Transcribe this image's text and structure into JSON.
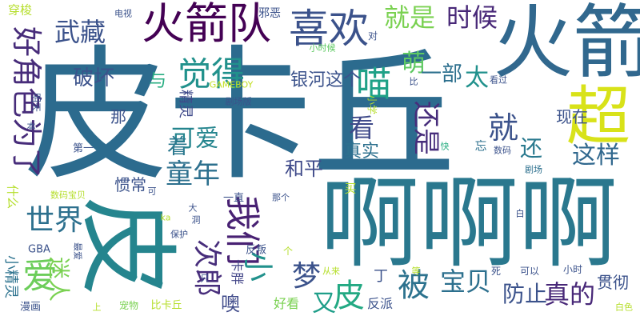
{
  "palette": {
    "background": "#ffffff",
    "purple": "#440154",
    "indigo": "#3b528b",
    "teal": "#21918c",
    "green": "#5ec962",
    "lime": "#b5de2b",
    "yellow": "#fde725"
  },
  "words": [
    {
      "text": "皮卡丘",
      "color": "#2c6b8e",
      "vertical": false
    },
    {
      "text": "火箭",
      "color": "#31688e",
      "vertical": false
    },
    {
      "text": "超",
      "color": "#d8e219",
      "vertical": false
    },
    {
      "text": "啊啊啊",
      "color": "#2a788e",
      "vertical": false
    },
    {
      "text": "皮",
      "color": "#25858e",
      "vertical": true
    },
    {
      "text": "火箭队",
      "color": "#440154",
      "vertical": false
    },
    {
      "text": "喜欢",
      "color": "#3b528b",
      "vertical": false
    },
    {
      "text": "就是",
      "color": "#7ad151",
      "vertical": false
    },
    {
      "text": "时候",
      "color": "#482878",
      "vertical": false
    },
    {
      "text": "武藏",
      "color": "#3b528b",
      "vertical": false
    },
    {
      "text": "觉得",
      "color": "#21918c",
      "vertical": false
    },
    {
      "text": "喵",
      "color": "#1fa187",
      "vertical": false
    },
    {
      "text": "萌",
      "color": "#5ec962",
      "vertical": false
    },
    {
      "text": "太",
      "color": "#21918c",
      "vertical": false
    },
    {
      "text": "好角色为了",
      "color": "#472c7a",
      "vertical": true
    },
    {
      "text": "一部",
      "color": "#2d708e",
      "vertical": false
    },
    {
      "text": "破坏",
      "color": "#3b528b",
      "vertical": false
    },
    {
      "text": "与",
      "color": "#27ad81",
      "vertical": false
    },
    {
      "text": "银河这个",
      "color": "#3b528b",
      "vertical": false
    },
    {
      "text": "还是",
      "color": "#472d7b",
      "vertical": true
    },
    {
      "text": "可爱",
      "color": "#25858e",
      "vertical": false
    },
    {
      "text": "看",
      "color": "#3e4989",
      "vertical": false
    },
    {
      "text": "就",
      "color": "#3b528b",
      "vertical": false
    },
    {
      "text": "还",
      "color": "#29798e",
      "vertical": false
    },
    {
      "text": "现在",
      "color": "#3b528b",
      "vertical": false
    },
    {
      "text": "这样",
      "color": "#31688e",
      "vertical": false
    },
    {
      "text": "着",
      "color": "#2a788e",
      "vertical": false
    },
    {
      "text": "真实",
      "color": "#2d708e",
      "vertical": false
    },
    {
      "text": "童年",
      "color": "#2d708e",
      "vertical": false
    },
    {
      "text": "世界",
      "color": "#2d708e",
      "vertical": false
    },
    {
      "text": "我们",
      "color": "#482173",
      "vertical": true
    },
    {
      "text": "爱",
      "color": "#6ccd5a",
      "vertical": false
    },
    {
      "text": "和平",
      "color": "#3e4989",
      "vertical": false
    },
    {
      "text": "惯常",
      "color": "#3b528b",
      "vertical": false
    },
    {
      "text": "小",
      "color": "#21918c",
      "vertical": true
    },
    {
      "text": "次郎",
      "color": "#472d7b",
      "vertical": true
    },
    {
      "text": "梦",
      "color": "#3b528b",
      "vertical": false
    },
    {
      "text": "被",
      "color": "#2c728e",
      "vertical": false
    },
    {
      "text": "皮",
      "color": "#23a983",
      "vertical": false
    },
    {
      "text": "宝贝",
      "color": "#2d708e",
      "vertical": false
    },
    {
      "text": "防止",
      "color": "#3b528b",
      "vertical": false
    },
    {
      "text": "真的",
      "color": "#482878",
      "vertical": false
    },
    {
      "text": "贯彻",
      "color": "#3b528b",
      "vertical": false
    },
    {
      "text": "迷人",
      "color": "#7ad151",
      "vertical": true
    },
    {
      "text": "又",
      "color": "#1f9e89",
      "vertical": false
    },
    {
      "text": "噢",
      "color": "#3e4989",
      "vertical": false
    },
    {
      "text": "丁",
      "color": "#3b528b",
      "vertical": false
    },
    {
      "text": "卡胖",
      "color": "#414487",
      "vertical": true
    },
    {
      "text": "反叛",
      "color": "#3b528b",
      "vertical": false
    },
    {
      "text": "好看",
      "color": "#7ad151",
      "vertical": false
    },
    {
      "text": "反派",
      "color": "#3b528b",
      "vertical": false
    },
    {
      "text": "小精灵",
      "color": "#2c728e",
      "vertical": true
    },
    {
      "text": "漫画",
      "color": "#3b528b",
      "vertical": false
    },
    {
      "text": "宠物",
      "color": "#7ad151",
      "vertical": false
    },
    {
      "text": "比卡丘",
      "color": "#b5de2b",
      "vertical": false
    },
    {
      "text": "白色",
      "color": "#b5de2b",
      "vertical": false
    },
    {
      "text": "穿梭",
      "color": "#b5de2b",
      "vertical": false
    },
    {
      "text": "电视",
      "color": "#3b528b",
      "vertical": false
    },
    {
      "text": "邪恶",
      "color": "#3b528b",
      "vertical": false
    },
    {
      "text": "对",
      "color": "#3b528b",
      "vertical": false
    },
    {
      "text": "小时候",
      "color": "#5ec962",
      "vertical": false
    },
    {
      "text": "GAMEBOY",
      "color": "#c2df23",
      "vertical": false
    },
    {
      "text": "剧场版",
      "color": "#3b528b",
      "vertical": false
    },
    {
      "text": "精灵",
      "color": "#3e4989",
      "vertical": true
    },
    {
      "text": "那",
      "color": "#3b528b",
      "vertical": false
    },
    {
      "text": "本",
      "color": "#3b528b",
      "vertical": false
    },
    {
      "text": "第一",
      "color": "#3b528b",
      "vertical": false
    },
    {
      "text": "什么",
      "color": "#b5de2b",
      "vertical": true
    },
    {
      "text": "数码宝贝",
      "color": "#b5de2b",
      "vertical": false
    },
    {
      "text": "一直",
      "color": "#3b528b",
      "vertical": false
    },
    {
      "text": "那个",
      "color": "#3b528b",
      "vertical": false
    },
    {
      "text": "买",
      "color": "#b5de2b",
      "vertical": false
    },
    {
      "text": "忘",
      "color": "#2d708e",
      "vertical": false
    },
    {
      "text": "快",
      "color": "#27ad81",
      "vertical": false
    },
    {
      "text": "数码",
      "color": "#3b528b",
      "vertical": false
    },
    {
      "text": "剧场",
      "color": "#2d708e",
      "vertical": false
    },
    {
      "text": "白",
      "color": "#3b528b",
      "vertical": false
    },
    {
      "text": "小学",
      "color": "#b5de2b",
      "vertical": true
    },
    {
      "text": "比",
      "color": "#3b528b",
      "vertical": false
    },
    {
      "text": "看过",
      "color": "#3b528b",
      "vertical": false
    },
    {
      "text": "保护",
      "color": "#3b528b",
      "vertical": false
    },
    {
      "text": "GBA",
      "color": "#3b528b",
      "vertical": false
    },
    {
      "text": "最爱",
      "color": "#3b528b",
      "vertical": true
    },
    {
      "text": "ka",
      "color": "#b5de2b",
      "vertical": false
    },
    {
      "text": "大",
      "color": "#3b528b",
      "vertical": false
    },
    {
      "text": "洞",
      "color": "#3b528b",
      "vertical": false
    },
    {
      "text": "个",
      "color": "#b5de2b",
      "vertical": false
    },
    {
      "text": "死",
      "color": "#3b528b",
      "vertical": false
    },
    {
      "text": "可以",
      "color": "#3b528b",
      "vertical": false
    },
    {
      "text": "小时",
      "color": "#3b528b",
      "vertical": false
    },
    {
      "text": "从来",
      "color": "#b5de2b",
      "vertical": false
    },
    {
      "text": "等",
      "color": "#b5de2b",
      "vertical": false
    },
    {
      "text": "只",
      "color": "#3b528b",
      "vertical": false
    },
    {
      "text": "上",
      "color": "#b5de2b",
      "vertical": false
    },
    {
      "text": "可",
      "color": "#3b528b",
      "vertical": false
    },
    {
      "text": "明天",
      "color": "#3b528b",
      "vertical": true
    }
  ]
}
